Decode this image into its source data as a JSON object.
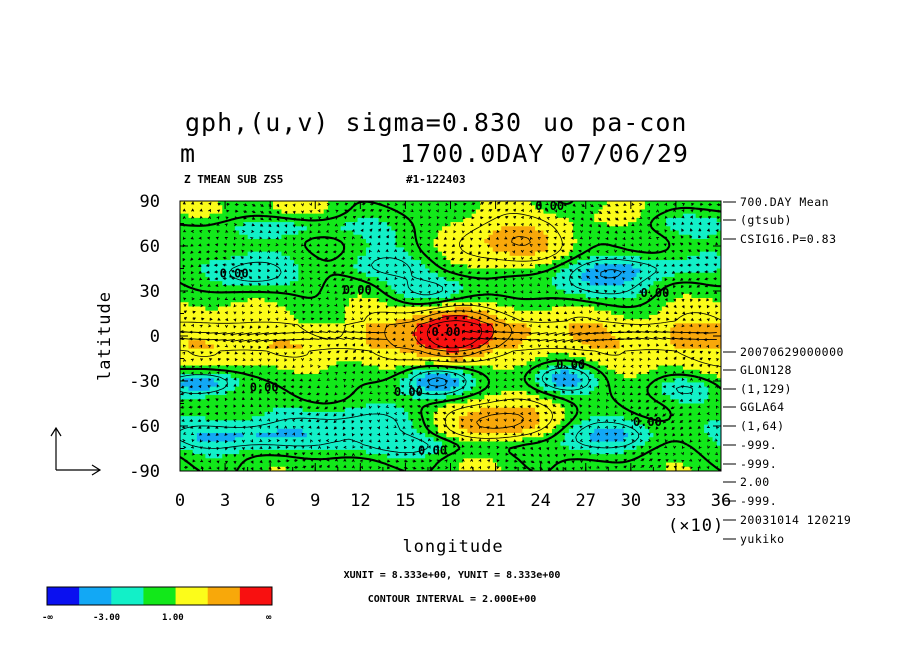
{
  "chart_data": {
    "type": "heatmap",
    "title_line1": "gph,(u,v) sigma=0.830",
    "title_overlap": "uo pa-con",
    "title_units": "m",
    "title_time": "1700.0DAY 07/06/29",
    "subtitle_left": "Z TMEAN SUB ZS5",
    "subtitle_right": "#1-122403",
    "xlabel": "longitude",
    "ylabel": "latitude",
    "x_multiplier_label": "(×10)",
    "xlim": [
      0,
      36
    ],
    "ylim": [
      -90,
      90
    ],
    "x_ticks": [
      0,
      3,
      6,
      9,
      12,
      15,
      18,
      21,
      24,
      27,
      30,
      33,
      36
    ],
    "x_tick_labels": [
      "0",
      "3",
      "6",
      "9",
      "12",
      "15",
      "18",
      "21",
      "24",
      "27",
      "30",
      "33",
      "36"
    ],
    "y_ticks": [
      90,
      60,
      30,
      0,
      -30,
      -60,
      -90
    ],
    "y_tick_labels": [
      "90",
      "60",
      "30",
      "0",
      "-30",
      "-60",
      "-90"
    ],
    "colorbar": {
      "colors": [
        "#0a10f0",
        "#12a8f5",
        "#12f0c8",
        "#12e81a",
        "#fcfc1a",
        "#f8a80a",
        "#f81010"
      ],
      "labels": [
        "-∞",
        "-3.00",
        "1.00",
        "∞"
      ]
    },
    "contour_labels": [
      {
        "text": "0.00",
        "x": 24.6,
        "y": 84
      },
      {
        "text": "0.00",
        "x": 3.6,
        "y": 39
      },
      {
        "text": "0.00",
        "x": 11.8,
        "y": 28
      },
      {
        "text": "0.00",
        "x": 31.6,
        "y": 26
      },
      {
        "text": "0.00",
        "x": 17.7,
        "y": 0
      },
      {
        "text": "0.00",
        "x": 5.6,
        "y": -37
      },
      {
        "text": "0.00",
        "x": 15.2,
        "y": -40
      },
      {
        "text": "0.00",
        "x": 26.0,
        "y": -22
      },
      {
        "text": "0.00",
        "x": 31.1,
        "y": -60
      },
      {
        "text": "0.00",
        "x": 16.8,
        "y": -79
      }
    ],
    "anomaly_blobs": [
      {
        "x": 18.2,
        "y": 0,
        "sx": 1.6,
        "sy": 12,
        "a": 7.5
      },
      {
        "x": 18.8,
        "y": 5,
        "sx": 3.0,
        "sy": 8,
        "a": 2.5
      },
      {
        "x": 21.5,
        "y": -57,
        "sx": 2.8,
        "sy": 11,
        "a": 5.0
      },
      {
        "x": 22.5,
        "y": 62,
        "sx": 3.2,
        "sy": 12,
        "a": 4.2
      },
      {
        "x": 32.5,
        "y": -5,
        "sx": 2.5,
        "sy": 15,
        "a": 1.4
      },
      {
        "x": 3.0,
        "y": 83,
        "sx": 4.0,
        "sy": 6,
        "a": 1.2
      },
      {
        "x": 27.0,
        "y": 78,
        "sx": 2.5,
        "sy": 6,
        "a": 1.0
      },
      {
        "x": 8.0,
        "y": -10,
        "sx": 3.5,
        "sy": 7,
        "a": 0.9
      },
      {
        "x": 1.5,
        "y": -31,
        "sx": 1.6,
        "sy": 6,
        "a": -5.0
      },
      {
        "x": 17.0,
        "y": -30,
        "sx": 1.6,
        "sy": 8,
        "a": -5.5
      },
      {
        "x": 25.5,
        "y": -28,
        "sx": 1.6,
        "sy": 7,
        "a": -4.5
      },
      {
        "x": 4.8,
        "y": 41,
        "sx": 1.8,
        "sy": 8,
        "a": -3.2
      },
      {
        "x": 17.0,
        "y": 30,
        "sx": 2.2,
        "sy": 8,
        "a": -3.0
      },
      {
        "x": 27.5,
        "y": 34,
        "sx": 2.6,
        "sy": 9,
        "a": -3.2
      },
      {
        "x": 30.0,
        "y": 45,
        "sx": 3.0,
        "sy": 6,
        "a": -2.5
      },
      {
        "x": 13.5,
        "y": 46,
        "sx": 2.0,
        "sy": 6,
        "a": -1.8
      },
      {
        "x": 4.5,
        "y": -67,
        "sx": 4.5,
        "sy": 6,
        "a": -2.6
      },
      {
        "x": 28.5,
        "y": -66,
        "sx": 2.5,
        "sy": 7,
        "a": -3.0
      },
      {
        "x": 10.5,
        "y": -57,
        "sx": 3.0,
        "sy": 7,
        "a": -2.2
      },
      {
        "x": 33.5,
        "y": -35,
        "sx": 1.6,
        "sy": 6,
        "a": -2.2
      },
      {
        "x": 16.0,
        "y": -73,
        "sx": 6.0,
        "sy": 5,
        "a": -1.8
      },
      {
        "x": 8.0,
        "y": 73,
        "sx": 3.0,
        "sy": 5,
        "a": -1.8
      },
      {
        "x": 33.5,
        "y": 75,
        "sx": 2.0,
        "sy": 5,
        "a": -1.6
      }
    ],
    "wind_vectors": {
      "equatorial_jet_lat_band": [
        -5,
        5
      ],
      "scale_label": "XUNIT = 8.333e+00, YUNIT = 8.333e+00"
    },
    "right_info": [
      "700.DAY Mean",
      "(gtsub)",
      "CSIG16.P=0.83",
      "20070629000000",
      "GLON128",
      "(1,129)",
      "GGLA64",
      "(1,64)",
      "-999.",
      "-999.",
      "2.00",
      "-999.",
      "20031014 120219",
      "yukiko"
    ],
    "footer_units": "XUNIT = 8.333e+00, YUNIT = 8.333e+00",
    "footer_contour": "CONTOUR INTERVAL = 2.000E+00"
  }
}
